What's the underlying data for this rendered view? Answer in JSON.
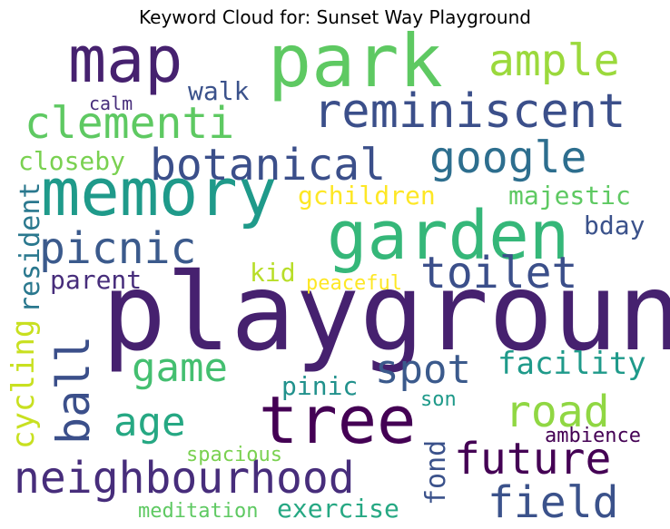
{
  "chart_data": {
    "type": "wordcloud",
    "title": "Keyword Cloud for: Sunset Way Playground",
    "words": [
      {
        "text": "playground",
        "color": "#46216f"
      },
      {
        "text": "map",
        "color": "#46216f"
      },
      {
        "text": "park",
        "color": "#5ec962"
      },
      {
        "text": "memory",
        "color": "#1f9a8a"
      },
      {
        "text": "garden",
        "color": "#35b779"
      },
      {
        "text": "tree",
        "color": "#440154"
      },
      {
        "text": "neighbourhood",
        "color": "#472d7b"
      },
      {
        "text": "reminiscent",
        "color": "#3b4f8a"
      },
      {
        "text": "clementi",
        "color": "#5ec962"
      },
      {
        "text": "botanical",
        "color": "#3b4f8a"
      },
      {
        "text": "google",
        "color": "#2d6e8e"
      },
      {
        "text": "picnic",
        "color": "#3b5a8c"
      },
      {
        "text": "ample",
        "color": "#9bd93c"
      },
      {
        "text": "toilet",
        "color": "#3b4f8a"
      },
      {
        "text": "future",
        "color": "#440154"
      },
      {
        "text": "field",
        "color": "#3b528b"
      },
      {
        "text": "spot",
        "color": "#3b5a8c"
      },
      {
        "text": "road",
        "color": "#90d743"
      },
      {
        "text": "game",
        "color": "#44bf70"
      },
      {
        "text": "age",
        "color": "#26a883"
      },
      {
        "text": "ball",
        "color": "#3b4f8a"
      },
      {
        "text": "walk",
        "color": "#3b528b"
      },
      {
        "text": "closeby",
        "color": "#7ad151"
      },
      {
        "text": "calm",
        "color": "#472d7b"
      },
      {
        "text": "gchildren",
        "color": "#fde725"
      },
      {
        "text": "majestic",
        "color": "#5ec962"
      },
      {
        "text": "resident",
        "color": "#2a788e"
      },
      {
        "text": "bday",
        "color": "#3b528b"
      },
      {
        "text": "parent",
        "color": "#472d7b"
      },
      {
        "text": "kid",
        "color": "#b8de29"
      },
      {
        "text": "peaceful",
        "color": "#fde725"
      },
      {
        "text": "facility",
        "color": "#1f9a8a"
      },
      {
        "text": "pinic",
        "color": "#21918c"
      },
      {
        "text": "son",
        "color": "#1f9a8a"
      },
      {
        "text": "cycling",
        "color": "#c8e020"
      },
      {
        "text": "ambience",
        "color": "#440154"
      },
      {
        "text": "spacious",
        "color": "#7ad151"
      },
      {
        "text": "fond",
        "color": "#3b528b"
      },
      {
        "text": "meditation",
        "color": "#5ec962"
      },
      {
        "text": "exercise",
        "color": "#26a883"
      }
    ]
  }
}
